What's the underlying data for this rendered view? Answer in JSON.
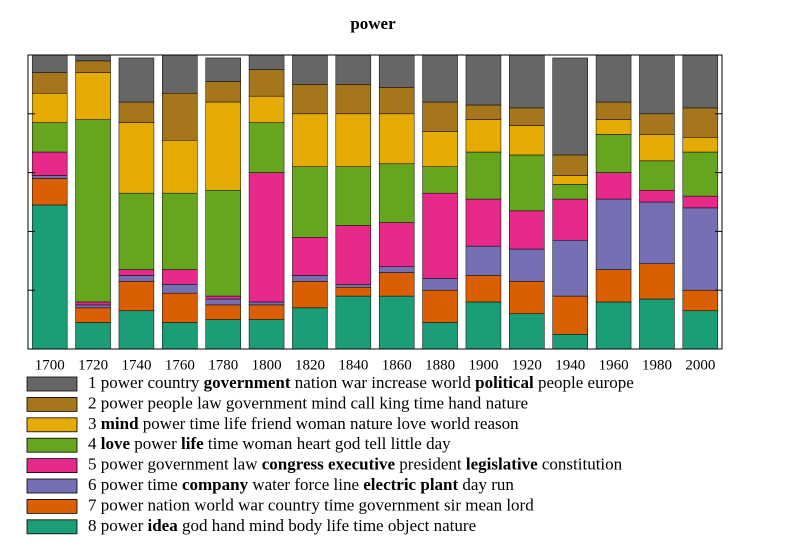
{
  "chart_data": {
    "type": "stacked_bar",
    "title": "power",
    "categories": [
      "1700",
      "1720",
      "1740",
      "1760",
      "1780",
      "1800",
      "1820",
      "1840",
      "1860",
      "1880",
      "1900",
      "1920",
      "1940",
      "1960",
      "1980",
      "2000"
    ],
    "ylim": [
      0,
      100
    ],
    "yticks": [
      0,
      20,
      40,
      60,
      80,
      100
    ],
    "series": [
      {
        "name": "1 power country government nation war increase world political people europe",
        "bold": [
          "government",
          "political"
        ],
        "color": "#666666",
        "values": [
          7,
          3,
          15,
          13,
          8,
          6,
          10,
          10,
          11,
          17,
          18,
          19,
          33,
          17,
          20,
          18
        ]
      },
      {
        "name": "2 power people law government mind call king time hand nature",
        "bold": [],
        "color": "#a6761d",
        "values": [
          7,
          4,
          7,
          16,
          7,
          9,
          10,
          10,
          9,
          10,
          5,
          6,
          7,
          6,
          7,
          10
        ]
      },
      {
        "name": "3 mind power time life friend woman nature love world reason",
        "bold": [
          "mind"
        ],
        "color": "#e6ab02",
        "values": [
          10,
          16,
          24,
          18,
          30,
          9,
          18,
          18,
          17,
          12,
          11,
          10,
          3,
          5,
          9,
          5
        ]
      },
      {
        "name": "4 love power life time woman heart god tell little day",
        "bold": [
          "love",
          "life"
        ],
        "color": "#66a61e",
        "values": [
          10,
          62,
          26,
          26,
          36,
          17,
          24,
          20,
          20,
          9,
          16,
          19,
          5,
          13,
          10,
          15
        ]
      },
      {
        "name": "5 power government law congress executive president legislative constitution",
        "bold": [
          "congress",
          "executive",
          "legislative"
        ],
        "color": "#e7298a",
        "values": [
          8,
          1,
          2,
          5,
          1,
          44,
          13,
          20,
          15,
          29,
          16,
          13,
          14,
          9,
          4,
          4
        ]
      },
      {
        "name": "6 power time company water force line electric plant day run",
        "bold": [
          "company",
          "electric",
          "plant"
        ],
        "color": "#7570b3",
        "values": [
          1,
          1,
          2,
          3,
          2,
          1,
          2,
          1,
          2,
          4,
          10,
          11,
          19,
          24,
          21,
          28
        ]
      },
      {
        "name": "7 power nation world war country time government sir mean lord",
        "bold": [],
        "color": "#d95f02",
        "values": [
          9,
          5,
          10,
          10,
          5,
          5,
          9,
          3,
          8,
          11,
          9,
          11,
          13,
          11,
          12,
          7
        ]
      },
      {
        "name": "8 power idea god hand mind body life time object nature",
        "bold": [
          "idea"
        ],
        "color": "#1b9e77",
        "values": [
          49,
          9,
          13,
          9,
          10,
          10,
          14,
          18,
          18,
          9,
          16,
          12,
          5,
          16,
          17,
          13
        ]
      }
    ]
  }
}
